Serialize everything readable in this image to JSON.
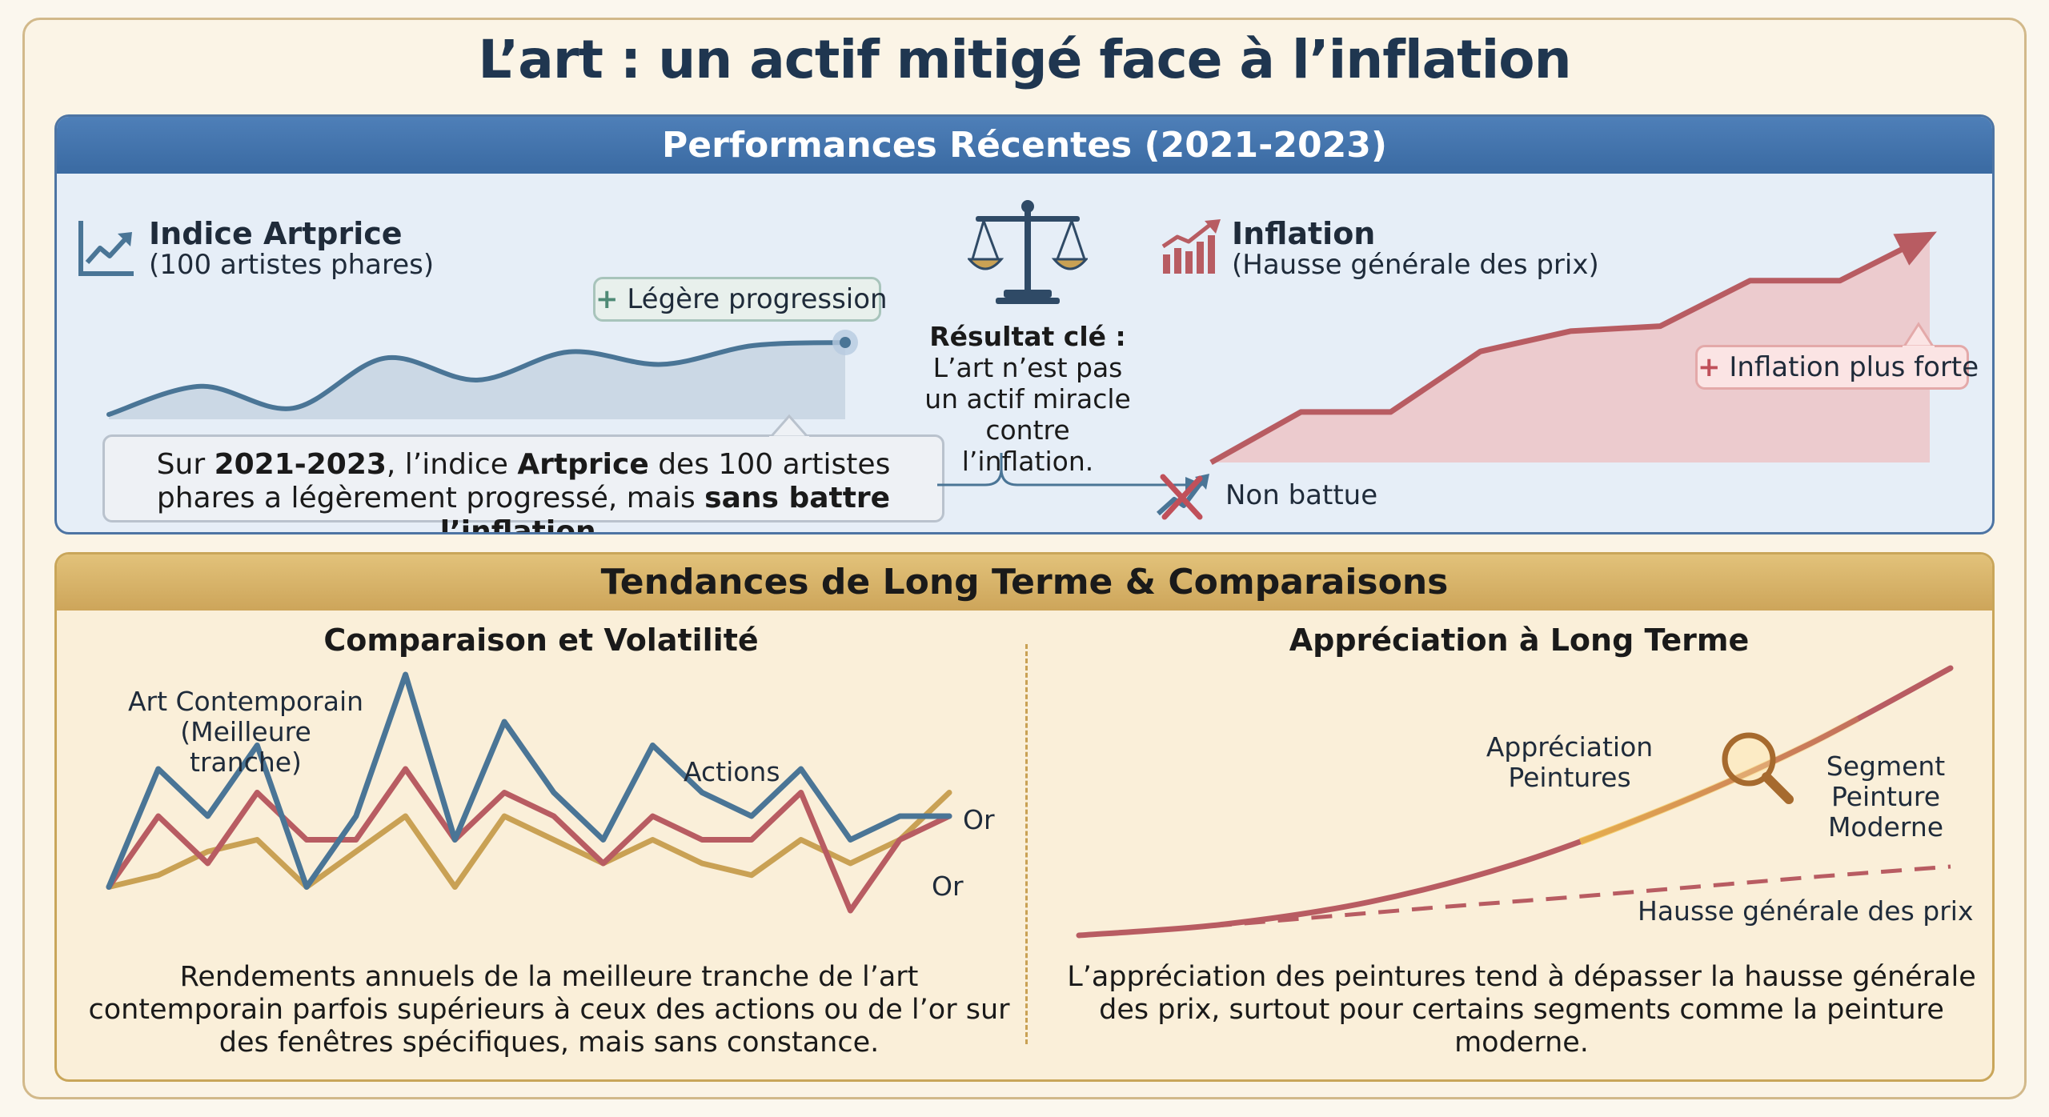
{
  "title": "L’art : un actif mitigé face à l’inflation",
  "colors": {
    "blue": "#4a7596",
    "red": "#b85c62",
    "gold": "#c9a154",
    "panel_top_header": "#3f6fa7",
    "panel_bottom_header": "#d6b266"
  },
  "panel_top": {
    "header": "Performances Récentes (2021-2023)",
    "artprice": {
      "icon": "line-chart-icon",
      "title": "Indice Artprice",
      "subtitle": "(100 artistes phares)",
      "badge_plus": "+",
      "badge": "Légère progression"
    },
    "note": {
      "t1": "Sur ",
      "b1": "2021-2023",
      "t2": ", l’indice ",
      "b2": "Artprice",
      "t3": " des 100 artistes phares a légèrement progressé, mais ",
      "b3": "sans battre l’inflation."
    },
    "center": {
      "icon": "scales-icon",
      "title": "Résultat clé :",
      "text": "L’art n’est pas un actif miracle contre l’inflation."
    },
    "inflation": {
      "icon": "bar-chart-up-icon",
      "title": "Inflation",
      "subtitle": "(Hausse générale des prix)",
      "badge_plus": "+",
      "badge": "Inflation plus forte"
    },
    "not_beaten": "Non battue"
  },
  "panel_bottom": {
    "header": "Tendances de Long Terme & Comparaisons",
    "left": {
      "title": "Comparaison et Volatilité",
      "label_art": "Art Contemporain (Meilleure tranche)",
      "label_actions": "Actions",
      "label_or_1": "Or",
      "label_or_2": "Or",
      "text": "Rendements annuels de la meilleure tranche de l’art contemporain parfois supérieurs à ceux des actions ou de l’or sur des fenêtres spécifiques, mais sans constance."
    },
    "right": {
      "title": "Appréciation à Long Terme",
      "label_paintings": "Appréciation Peintures",
      "label_segment": "Segment Peinture Moderne",
      "label_prices": "Hausse générale des prix",
      "icon": "magnifier-icon",
      "text": "L’appréciation des peintures tend à dépasser la hausse générale des prix, surtout pour certains segments comme la peinture moderne."
    }
  },
  "chart_data": [
    {
      "type": "area",
      "series": [
        {
          "name": "Indice Artprice",
          "values": [
            0,
            0.9,
            0.2,
            1.8,
            1.1,
            2.0,
            1.6,
            2.2,
            2.3
          ]
        }
      ]
    },
    {
      "type": "area",
      "series": [
        {
          "name": "Inflation",
          "values": [
            0,
            1.0,
            1.0,
            2.2,
            2.6,
            2.7,
            3.6,
            3.6,
            4.5
          ]
        }
      ]
    },
    {
      "type": "line",
      "series": [
        {
          "name": "Actions",
          "values": [
            1,
            6,
            4,
            7,
            1,
            4,
            10,
            3,
            8,
            5,
            3,
            7,
            5,
            4,
            6,
            3,
            4,
            4
          ]
        },
        {
          "name": "Art Contemporain",
          "values": [
            1,
            4,
            2,
            5,
            3,
            3,
            6,
            3,
            5,
            4,
            2,
            4,
            3,
            3,
            5,
            0,
            3,
            4
          ]
        },
        {
          "name": "Or",
          "values": [
            1,
            1.5,
            2.5,
            3,
            1,
            2.5,
            4,
            1,
            4,
            3,
            2,
            3,
            2,
            1.5,
            3,
            2,
            3,
            5
          ]
        }
      ]
    },
    {
      "type": "line",
      "series": [
        {
          "name": "Appréciation Peintures",
          "values": [
            0,
            0.5,
            1.5,
            3.2,
            5.6,
            8.5,
            12
          ]
        },
        {
          "name": "Hausse générale des prix",
          "values": [
            0,
            1.1,
            2.2,
            3.2,
            4.3,
            5.4,
            6.4
          ]
        }
      ]
    }
  ]
}
